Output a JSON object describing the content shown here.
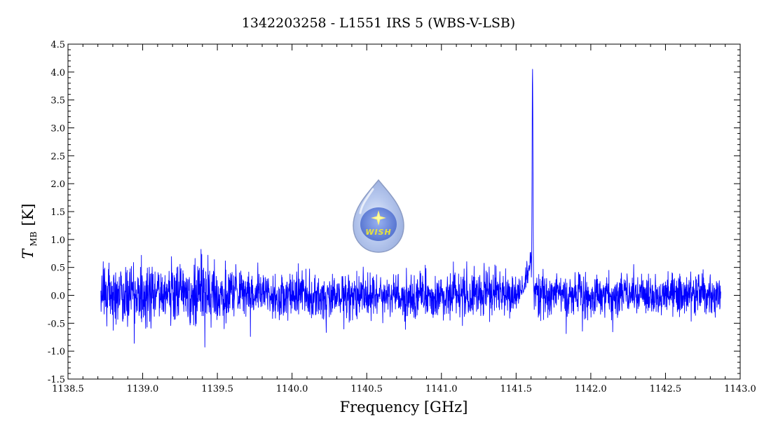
{
  "chart_data": {
    "type": "line",
    "title": "1342203258 - L1551 IRS 5 (WBS-V-LSB)",
    "xlabel": "Frequency [GHz]",
    "ylabel": {
      "symbol": "T",
      "subscript": "MB",
      "unit": "[K]"
    },
    "xlim": [
      1138.5,
      1143.0
    ],
    "ylim": [
      -1.5,
      4.5
    ],
    "x_ticks": [
      "1138.5",
      "1139.0",
      "1139.5",
      "1140.0",
      "1140.5",
      "1141.0",
      "1141.5",
      "1142.0",
      "1142.5",
      "1143.0"
    ],
    "y_ticks": [
      "-1.5",
      "-1.0",
      "-0.5",
      "0.0",
      "0.5",
      "1.0",
      "1.5",
      "2.0",
      "2.5",
      "3.0",
      "3.5",
      "4.0",
      "4.5"
    ],
    "series": [
      {
        "color": "#0000ff",
        "x_range": [
          1138.72,
          1142.87
        ],
        "noise": {
          "baseline_sigma": 0.2,
          "low_freq_sigma": 0.28,
          "low_freq_end": 1139.6,
          "min": -0.97,
          "max": 0.93
        },
        "peak": {
          "x": 1141.61,
          "y": 4.05
        },
        "wing": {
          "x_start": 1141.45,
          "x_end": 1141.64,
          "y_at_edge": 0.0,
          "y_near_peak": 0.9
        }
      }
    ],
    "grid": false,
    "legend": "none"
  },
  "logo": {
    "text": "WISH",
    "icon": "water-drop-star-logo"
  }
}
